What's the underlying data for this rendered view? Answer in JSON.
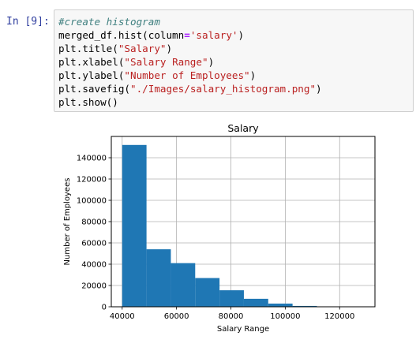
{
  "prompt": "In [9]:",
  "code": {
    "line1": "#create histogram",
    "line2_a": "merged_df.hist(column",
    "line2_op": "=",
    "line2_str": "'salary'",
    "line2_b": ")",
    "line3_a": "plt.title(",
    "line3_str": "\"Salary\"",
    "line3_b": ")",
    "line4_a": "plt.xlabel(",
    "line4_str": "\"Salary Range\"",
    "line4_b": ")",
    "line5_a": "plt.ylabel(",
    "line5_str": "\"Number of Employees\"",
    "line5_b": ")",
    "line6_a": "plt.savefig(",
    "line6_str": "\"./Images/salary_histogram.png\"",
    "line6_b": ")",
    "line7": "plt.show()"
  },
  "chart_data": {
    "type": "bar",
    "title": "Salary",
    "xlabel": "Salary Range",
    "ylabel": "Number of Employees",
    "xlim": [
      36000,
      133000
    ],
    "ylim": [
      0,
      160000
    ],
    "xticks": [
      40000,
      60000,
      80000,
      100000,
      120000
    ],
    "yticks": [
      0,
      20000,
      40000,
      60000,
      80000,
      100000,
      120000,
      140000
    ],
    "grid": true,
    "color": "#1f77b4",
    "bins": [
      {
        "x0": 40000,
        "x1": 48955,
        "value": 152000
      },
      {
        "x0": 48955,
        "x1": 57910,
        "value": 54000
      },
      {
        "x0": 57910,
        "x1": 66865,
        "value": 41000
      },
      {
        "x0": 66865,
        "x1": 75820,
        "value": 27000
      },
      {
        "x0": 75820,
        "x1": 84775,
        "value": 15500
      },
      {
        "x0": 84775,
        "x1": 93730,
        "value": 7500
      },
      {
        "x0": 93730,
        "x1": 102685,
        "value": 3000
      },
      {
        "x0": 102685,
        "x1": 111640,
        "value": 800
      },
      {
        "x0": 111640,
        "x1": 120595,
        "value": 150
      },
      {
        "x0": 120595,
        "x1": 129550,
        "value": 20
      }
    ]
  }
}
